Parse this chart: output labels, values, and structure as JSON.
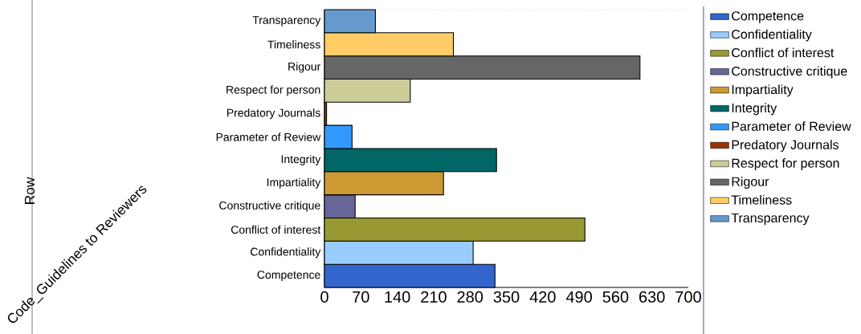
{
  "chart_data": {
    "type": "bar",
    "orientation": "horizontal",
    "stacked": true,
    "annotations": [
      "Row",
      "Code_Guidelines to Reviewers"
    ],
    "categories": [
      "Transparency",
      "Timeliness",
      "Rigour",
      "Respect for person",
      "Predatory Journals",
      "Parameter of Review",
      "Integrity",
      "Impartiality",
      "Constructive critique",
      "Conflict of interest",
      "Confidentiality",
      "Competence"
    ],
    "series": [
      {
        "name": "Competence",
        "color": "#3366cc",
        "values": [
          null,
          null,
          null,
          null,
          null,
          null,
          null,
          null,
          null,
          null,
          null,
          328
        ]
      },
      {
        "name": "Confidentiality",
        "color": "#99ccff",
        "values": [
          null,
          null,
          null,
          null,
          null,
          null,
          null,
          null,
          null,
          null,
          286,
          null
        ]
      },
      {
        "name": "Conflict of interest",
        "color": "#999933",
        "values": [
          null,
          null,
          null,
          null,
          null,
          null,
          null,
          null,
          null,
          501,
          null,
          null
        ]
      },
      {
        "name": "Constructive critique",
        "color": "#666699",
        "values": [
          null,
          null,
          null,
          null,
          null,
          null,
          null,
          null,
          59,
          null,
          null,
          null
        ]
      },
      {
        "name": "Impartiality",
        "color": "#cc9933",
        "values": [
          null,
          null,
          null,
          null,
          null,
          null,
          null,
          229,
          null,
          null,
          null,
          null
        ]
      },
      {
        "name": "Integrity",
        "color": "#006666",
        "values": [
          null,
          null,
          null,
          null,
          null,
          null,
          331,
          null,
          null,
          null,
          null,
          null
        ]
      },
      {
        "name": "Parameter of Review",
        "color": "#3399ff",
        "values": [
          null,
          null,
          null,
          null,
          null,
          53,
          null,
          null,
          null,
          null,
          null,
          null
        ]
      },
      {
        "name": "Predatory Journals",
        "color": "#993300",
        "values": [
          null,
          null,
          null,
          null,
          4,
          null,
          null,
          null,
          null,
          null,
          null,
          null
        ]
      },
      {
        "name": "Respect for person",
        "color": "#cccc99",
        "values": [
          null,
          null,
          null,
          165,
          null,
          null,
          null,
          null,
          null,
          null,
          null,
          null
        ]
      },
      {
        "name": "Rigour",
        "color": "#666666",
        "values": [
          null,
          null,
          607,
          null,
          null,
          null,
          null,
          null,
          null,
          null,
          null,
          null
        ]
      },
      {
        "name": "Timeliness",
        "color": "#ffcc66",
        "values": [
          null,
          248,
          null,
          null,
          null,
          null,
          null,
          null,
          null,
          null,
          null,
          null
        ]
      },
      {
        "name": "Transparency",
        "color": "#6699cc",
        "values": [
          98,
          null,
          null,
          null,
          null,
          null,
          null,
          null,
          null,
          null,
          null,
          null
        ]
      }
    ],
    "xlim": [
      0,
      700
    ],
    "xticks": [
      0,
      70,
      140,
      210,
      280,
      350,
      420,
      490,
      560,
      630,
      700
    ],
    "grid": false,
    "legend": "right"
  }
}
